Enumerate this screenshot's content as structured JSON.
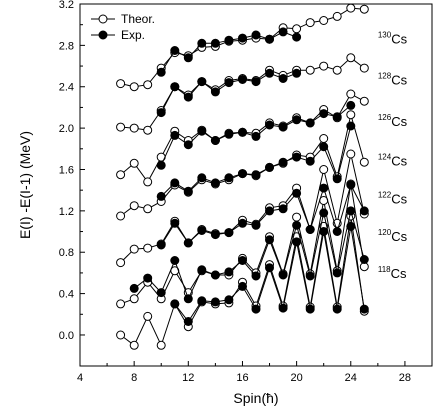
{
  "chart_data": {
    "type": "line",
    "xlabel": "Spin(ħ)",
    "ylabel": "E(I) -E(I-1) (MeV)",
    "xlim": [
      4,
      30
    ],
    "ylim": [
      -0.3,
      3.2
    ],
    "x_ticks": [
      "4",
      "8",
      "12",
      "16",
      "20",
      "24",
      "28"
    ],
    "y_ticks": [
      "0.0",
      "0.4",
      "0.8",
      "1.2",
      "1.6",
      "2.0",
      "2.4",
      "2.8",
      "3.2"
    ],
    "legend": {
      "placement": "top-left",
      "entries": [
        {
          "label": "Theor.",
          "marker": "open-circle"
        },
        {
          "label": "Exp.",
          "marker": "filled-circle"
        }
      ]
    },
    "isotopes": [
      {
        "mass": "118",
        "element": "Cs",
        "label_at": [
          26.0,
          0.55
        ],
        "theor": {
          "x": [
            7,
            8,
            9,
            10,
            11,
            12,
            13,
            14,
            15,
            16,
            17,
            18,
            19,
            20,
            21,
            22,
            23,
            24,
            25
          ],
          "y": [
            0.0,
            -0.1,
            0.18,
            -0.1,
            0.3,
            0.08,
            0.32,
            0.3,
            0.31,
            0.51,
            0.28,
            0.68,
            0.28,
            0.95,
            0.27,
            1.05,
            0.27,
            1.15,
            0.23
          ]
        },
        "exp": {
          "x": [
            11,
            12,
            13,
            14,
            15,
            16,
            17,
            18,
            19,
            20,
            21,
            22,
            23,
            24,
            25
          ],
          "y": [
            0.3,
            0.13,
            0.33,
            0.32,
            0.34,
            0.47,
            0.25,
            0.65,
            0.26,
            0.9,
            0.25,
            1.0,
            0.25,
            1.05,
            0.25
          ]
        }
      },
      {
        "mass": "120",
        "element": "Cs",
        "label_at": [
          26.0,
          0.91
        ],
        "theor": {
          "x": [
            7,
            8,
            9,
            10,
            11,
            12,
            13,
            14,
            15,
            16,
            17,
            18,
            19,
            20,
            21,
            22,
            23,
            24,
            25
          ],
          "y": [
            0.3,
            0.35,
            0.51,
            0.35,
            0.62,
            0.41,
            0.62,
            0.58,
            0.58,
            0.74,
            0.6,
            0.95,
            0.59,
            1.14,
            0.59,
            1.3,
            0.62,
            1.46,
            0.66
          ]
        },
        "exp": {
          "x": [
            8,
            9,
            10,
            11,
            12,
            13,
            14,
            15,
            16,
            17,
            18,
            19,
            20,
            21,
            22,
            23,
            24,
            25
          ],
          "y": [
            0.45,
            0.55,
            0.41,
            0.72,
            0.35,
            0.63,
            0.58,
            0.61,
            0.72,
            0.57,
            0.92,
            0.58,
            1.06,
            0.57,
            1.18,
            0.6,
            1.2,
            0.73
          ]
        }
      },
      {
        "mass": "122",
        "element": "Cs",
        "label_at": [
          26.0,
          1.27
        ],
        "theor": {
          "x": [
            7,
            8,
            9,
            10,
            11,
            12,
            13,
            14,
            15,
            16,
            17,
            18,
            19,
            20,
            21,
            22,
            23,
            24,
            25
          ],
          "y": [
            0.7,
            0.83,
            0.84,
            0.88,
            1.1,
            0.89,
            1.02,
            0.98,
            0.99,
            1.11,
            1.07,
            1.23,
            1.25,
            1.42,
            1.02,
            1.6,
            1.08,
            1.75,
            1.17
          ]
        },
        "exp": {
          "x": [
            10,
            11,
            12,
            13,
            14,
            15,
            16,
            17,
            18,
            19,
            20,
            21,
            22,
            23,
            24,
            25
          ],
          "y": [
            0.87,
            1.08,
            0.89,
            1.01,
            0.97,
            0.99,
            1.08,
            1.06,
            1.2,
            1.22,
            1.37,
            1.02,
            1.42,
            1.0,
            1.45,
            1.2
          ]
        }
      },
      {
        "mass": "124",
        "element": "Cs",
        "label_at": [
          26.0,
          1.64
        ],
        "theor": {
          "x": [
            7,
            8,
            9,
            10,
            11,
            12,
            13,
            14,
            15,
            16,
            17,
            18,
            19,
            20,
            21,
            22,
            23,
            24,
            25
          ],
          "y": [
            1.15,
            1.25,
            1.22,
            1.29,
            1.45,
            1.38,
            1.5,
            1.46,
            1.5,
            1.56,
            1.54,
            1.62,
            1.66,
            1.74,
            1.72,
            1.9,
            1.53,
            2.13,
            1.67
          ]
        },
        "exp": {
          "x": [
            10,
            11,
            12,
            13,
            14,
            15,
            16,
            17,
            18,
            19,
            20,
            21,
            22,
            23,
            24
          ],
          "y": [
            1.34,
            1.47,
            1.39,
            1.52,
            1.47,
            1.52,
            1.56,
            1.55,
            1.62,
            1.67,
            1.72,
            1.68,
            1.82,
            1.51,
            2.02
          ]
        }
      },
      {
        "mass": "126",
        "element": "Cs",
        "label_at": [
          26.0,
          2.02
        ],
        "theor": {
          "x": [
            7,
            8,
            9,
            10,
            11,
            12,
            13,
            14,
            15,
            16,
            17,
            18,
            19,
            20,
            21,
            22,
            23,
            24,
            25
          ],
          "y": [
            1.55,
            1.66,
            1.48,
            1.72,
            1.97,
            1.88,
            1.98,
            1.88,
            1.95,
            1.96,
            1.95,
            2.05,
            2.02,
            2.1,
            2.05,
            2.18,
            2.1,
            2.33,
            2.26
          ]
        },
        "exp": {
          "x": [
            10,
            11,
            12,
            13,
            14,
            15,
            16,
            17,
            18,
            19,
            20,
            21,
            22,
            23,
            24
          ],
          "y": [
            1.64,
            1.93,
            1.84,
            1.97,
            1.88,
            1.94,
            1.96,
            1.92,
            2.03,
            2.01,
            2.08,
            2.05,
            2.14,
            2.11,
            2.22
          ]
        }
      },
      {
        "mass": "128",
        "element": "Cs",
        "label_at": [
          26.0,
          2.42
        ],
        "theor": {
          "x": [
            7,
            8,
            9,
            10,
            11,
            12,
            13,
            14,
            15,
            16,
            17,
            18,
            19,
            20,
            21,
            22,
            23,
            24,
            25
          ],
          "y": [
            2.01,
            2.0,
            1.98,
            2.17,
            2.4,
            2.32,
            2.45,
            2.37,
            2.46,
            2.48,
            2.46,
            2.56,
            2.51,
            2.56,
            2.56,
            2.6,
            2.56,
            2.68,
            2.58
          ]
        },
        "exp": {
          "x": [
            10,
            11,
            12,
            13,
            14,
            15,
            16,
            17,
            18,
            19,
            20
          ],
          "y": [
            2.15,
            2.4,
            2.3,
            2.45,
            2.35,
            2.44,
            2.47,
            2.45,
            2.53,
            2.48,
            2.53
          ]
        }
      },
      {
        "mass": "130",
        "element": "Cs",
        "label_at": [
          26.0,
          2.82
        ],
        "theor": {
          "x": [
            7,
            8,
            9,
            10,
            11,
            12,
            13,
            14,
            15,
            16,
            17,
            18,
            19,
            20,
            21,
            22,
            23,
            24,
            25
          ],
          "y": [
            2.43,
            2.4,
            2.42,
            2.58,
            2.73,
            2.7,
            2.78,
            2.79,
            2.84,
            2.85,
            2.87,
            2.86,
            2.97,
            2.96,
            3.02,
            3.04,
            3.08,
            3.16,
            3.15
          ]
        },
        "exp": {
          "x": [
            10,
            11,
            12,
            13,
            14,
            15,
            16,
            17,
            18,
            19,
            20
          ],
          "y": [
            2.54,
            2.75,
            2.68,
            2.82,
            2.82,
            2.85,
            2.87,
            2.9,
            2.86,
            2.93,
            2.88
          ]
        }
      }
    ]
  }
}
